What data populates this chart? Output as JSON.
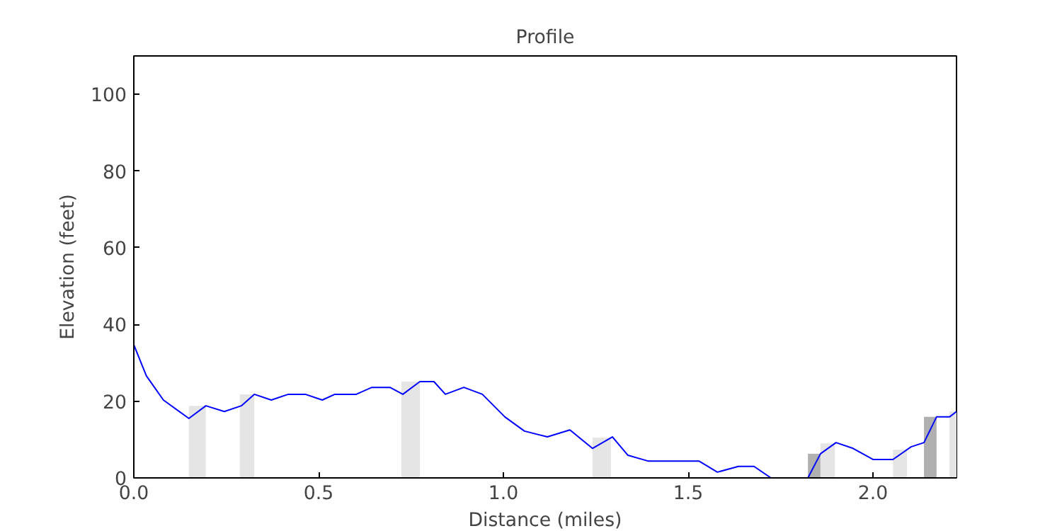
{
  "chart_data": {
    "type": "line",
    "title": "Profile",
    "xlabel": "Distance (miles)",
    "ylabel": "Elevation (feet)",
    "x": [
      0,
      0.034,
      0.08,
      0.149,
      0.195,
      0.245,
      0.291,
      0.326,
      0.372,
      0.418,
      0.464,
      0.51,
      0.544,
      0.602,
      0.644,
      0.693,
      0.728,
      0.774,
      0.812,
      0.843,
      0.893,
      0.943,
      1.004,
      1.057,
      1.119,
      1.18,
      1.241,
      1.295,
      1.337,
      1.391,
      1.529,
      1.579,
      1.636,
      1.678,
      1.724,
      1.824,
      1.858,
      1.9,
      1.946,
      2.0,
      2.054,
      2.103,
      2.138,
      2.172,
      2.207,
      2.226
    ],
    "series": [
      {
        "color": "#0000ff",
        "values": [
          34.7,
          26.6,
          20.3,
          15.5,
          18.8,
          17.3,
          18.8,
          21.8,
          20.3,
          21.8,
          21.8,
          20.3,
          21.8,
          21.8,
          23.6,
          23.6,
          21.8,
          25.1,
          25.1,
          21.8,
          23.6,
          21.8,
          15.9,
          12.2,
          10.7,
          12.5,
          7.7,
          10.7,
          5.9,
          4.4,
          4.4,
          1.5,
          3,
          3,
          0,
          0,
          6.3,
          9.2,
          7.7,
          4.8,
          4.8,
          8.1,
          9.2,
          15.9,
          15.9,
          17.3
        ]
      }
    ],
    "bands": [
      {
        "axis": "x",
        "from": 0.149,
        "to": 0.195,
        "color": "#e5e5e5"
      },
      {
        "axis": "x",
        "from": 0.287,
        "to": 0.326,
        "color": "#e5e5e5"
      },
      {
        "axis": "x",
        "from": 0.724,
        "to": 0.774,
        "color": "#e5e5e5"
      },
      {
        "axis": "x",
        "from": 1.241,
        "to": 1.291,
        "color": "#e5e5e5"
      },
      {
        "axis": "x",
        "from": 1.824,
        "to": 1.858,
        "color": "#b0b0b0"
      },
      {
        "axis": "x",
        "from": 1.858,
        "to": 1.897,
        "color": "#e5e5e5"
      },
      {
        "axis": "x",
        "from": 2.054,
        "to": 2.092,
        "color": "#e5e5e5"
      },
      {
        "axis": "x",
        "from": 2.138,
        "to": 2.172,
        "color": "#b0b0b0"
      },
      {
        "axis": "x",
        "from": 2.207,
        "to": 2.226,
        "color": "#e5e5e5"
      }
    ],
    "xlim": [
      0,
      2.226
    ],
    "ylim": [
      0,
      110
    ],
    "xticks": [
      {
        "value": 0,
        "label": "0.0"
      },
      0.5,
      {
        "value": 1,
        "label": "1.0"
      },
      1.5,
      {
        "value": 2,
        "label": "2.0"
      }
    ],
    "yticks": [
      0,
      20,
      40,
      60,
      80,
      100
    ],
    "grid": false
  }
}
